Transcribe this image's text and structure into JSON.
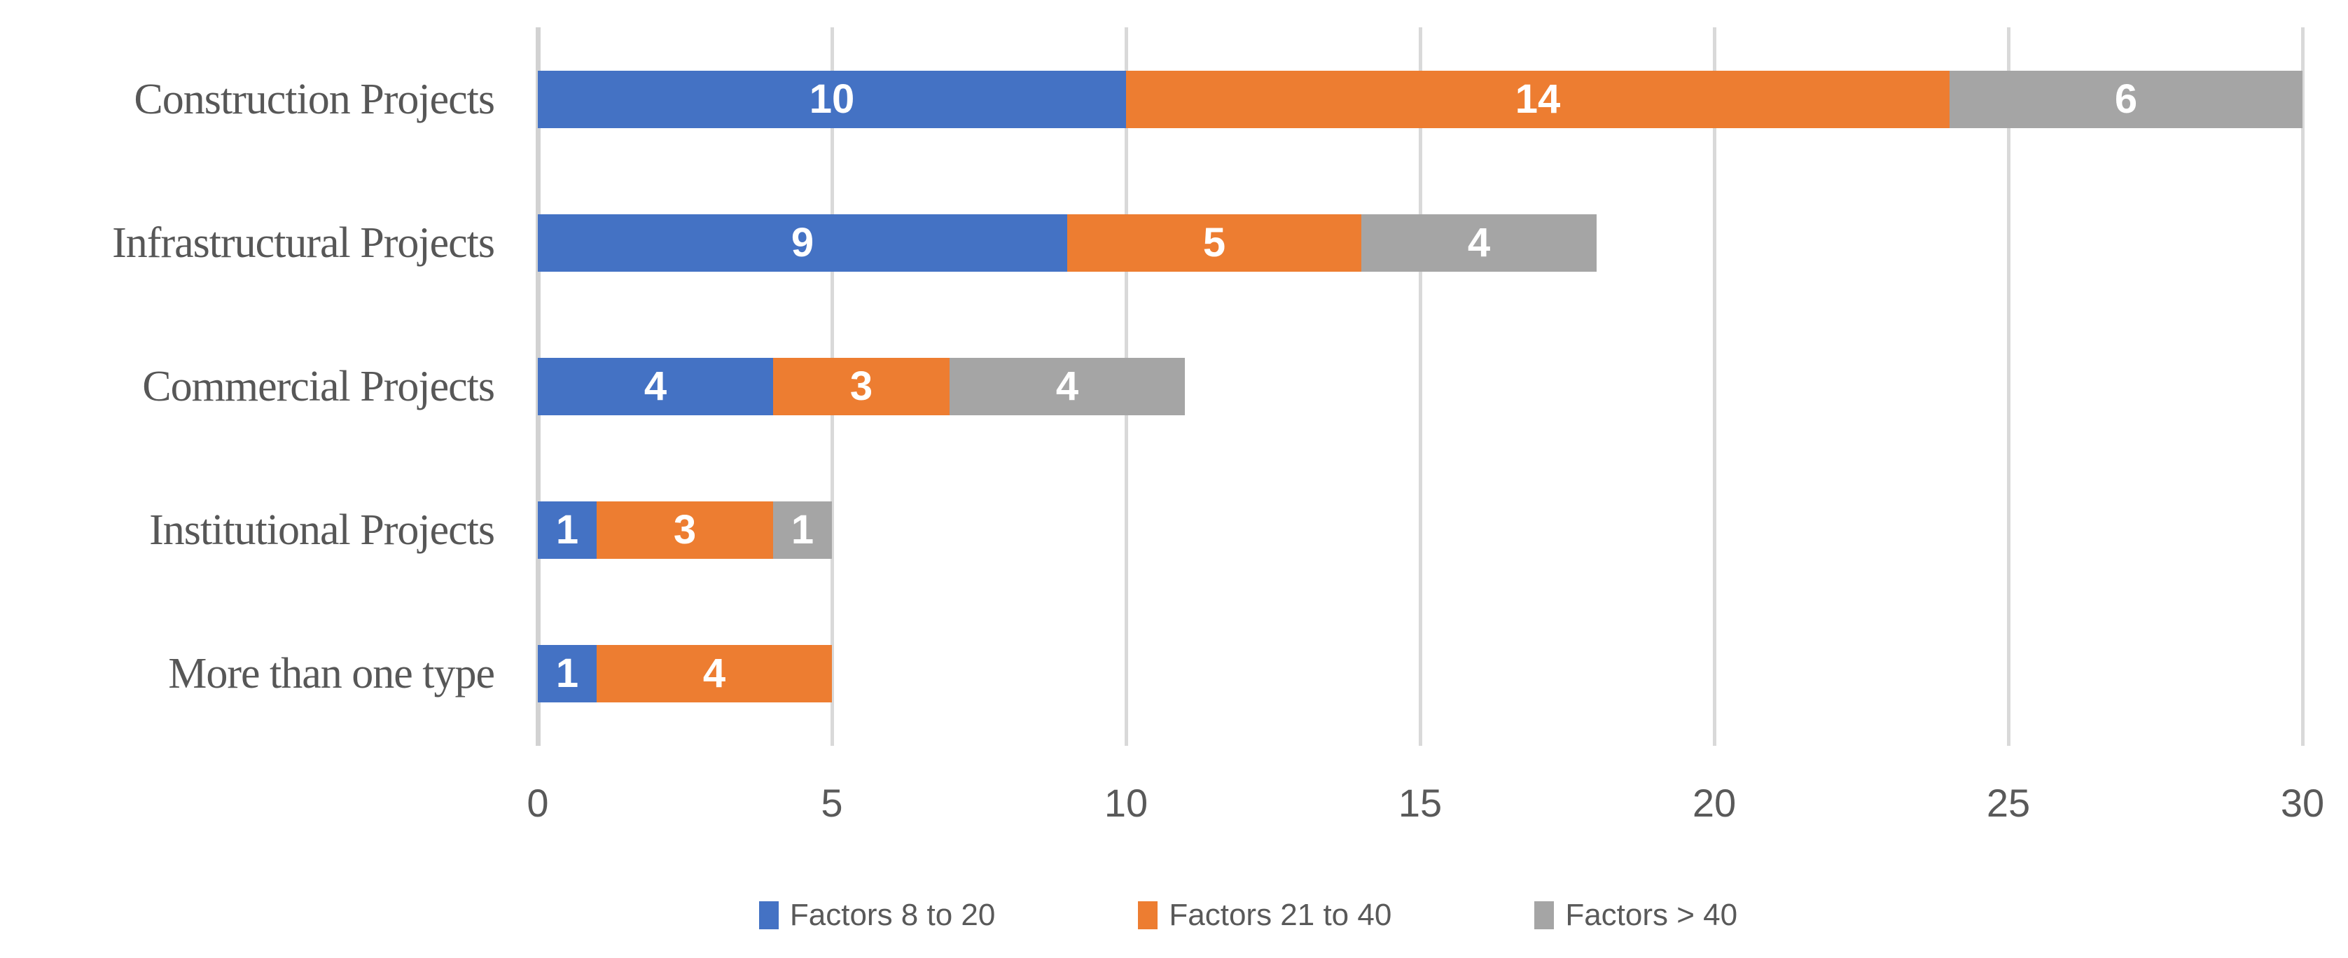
{
  "chart_data": {
    "type": "bar",
    "orientation": "horizontal",
    "stacked": true,
    "title": "",
    "categories": [
      "Construction Projects",
      "Infrastructural Projects",
      "Commercial Projects",
      "Institutional Projects",
      "More than one type"
    ],
    "series": [
      {
        "name": "Factors 8 to 20",
        "color": "#4472C4",
        "values": [
          10,
          9,
          4,
          1,
          1
        ]
      },
      {
        "name": "Factors 21 to 40",
        "color": "#ED7D31",
        "values": [
          14,
          5,
          3,
          3,
          4
        ]
      },
      {
        "name": "Factors > 40",
        "color": "#A5A5A5",
        "values": [
          6,
          4,
          4,
          1,
          0
        ]
      }
    ],
    "xlabel": "",
    "ylabel": "",
    "xlim": [
      0,
      30
    ],
    "x_ticks": [
      "0",
      "5",
      "10",
      "15",
      "20",
      "25",
      "30"
    ],
    "grid": true,
    "legend_position": "bottom",
    "data_labels": true
  },
  "colors": {
    "background": "#FFFFFF",
    "gridline": "#D9D9D9",
    "tick_text": "#595959",
    "category_text": "#575757",
    "legend_text": "#595959",
    "bar_label_text": "#FFFFFF"
  }
}
